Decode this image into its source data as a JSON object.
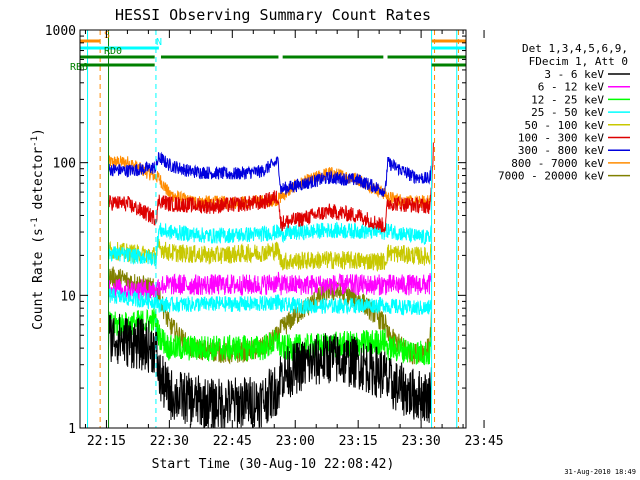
{
  "chart_data": {
    "type": "line",
    "title": "HESSI Observing Summary Count Rates",
    "xlabel": "Start Time (30-Aug-10 22:08:42)",
    "ylabel_main": "Count Rate (s",
    "ylabel_sup1": "-1",
    "ylabel_mid": " detector",
    "ylabel_sup2": "-1",
    "ylabel_end": ")",
    "yscale": "log",
    "ylim": [
      1,
      1000
    ],
    "xlim_min": [
      8.7,
      100.7
    ],
    "xticks_min": [
      15,
      30,
      45,
      60,
      75,
      90,
      105
    ],
    "xtick_labels": [
      "22:15",
      "22:30",
      "22:45",
      "23:00",
      "23:15",
      "23:30",
      "23:45"
    ],
    "ytick_labels": [
      {
        "v": 1,
        "label": "1"
      },
      {
        "v": 10,
        "label": "10"
      },
      {
        "v": 100,
        "label": "100"
      },
      {
        "v": 1000,
        "label": "1000"
      }
    ],
    "legend_header": [
      "Det 1,3,4,5,6,9,",
      "FDecim 1, Att 0"
    ],
    "legend": [
      {
        "label": "3 - 6 keV",
        "color": "#000000"
      },
      {
        "label": "6 - 12 keV",
        "color": "#ff00ff"
      },
      {
        "label": "12 - 25 keV",
        "color": "#00ff00"
      },
      {
        "label": "25 - 50 keV",
        "color": "#00ffff"
      },
      {
        "label": "50 - 100 keV",
        "color": "#c8c800"
      },
      {
        "label": "100 - 300 keV",
        "color": "#dd0000"
      },
      {
        "label": "300 - 800 keV",
        "color": "#0000dd"
      },
      {
        "label": "800 - 7000 keV",
        "color": "#ff8c00"
      },
      {
        "label": "7000 - 20000 keV",
        "color": "#808000"
      }
    ],
    "flags": [
      {
        "label": "S",
        "color": "#ff8c00",
        "segments": [
          [
            8.7,
            13.5
          ],
          [
            92.5,
            100.7
          ]
        ]
      },
      {
        "label": "N",
        "color": "#00ffff",
        "segments": [
          [
            8.7,
            27.5
          ],
          [
            92.5,
            100.7
          ]
        ]
      },
      {
        "label": "RD0",
        "color": "#008000",
        "segments": [
          [
            8.7,
            26.5
          ],
          [
            28,
            56
          ],
          [
            57,
            81
          ],
          [
            82,
            100.7
          ]
        ]
      },
      {
        "label": "RB6",
        "color": "#008000",
        "segments": [
          [
            8.7,
            26.5
          ],
          [
            92.5,
            100.7
          ]
        ]
      }
    ],
    "vlines": [
      {
        "x": 10.5,
        "color": "#00ffff",
        "dash": false
      },
      {
        "x": 13.5,
        "color": "#ff8c00",
        "dash": true
      },
      {
        "x": 15.5,
        "color": "#008000",
        "dash": false
      },
      {
        "x": 26.8,
        "color": "#00ffff",
        "dash": true
      },
      {
        "x": 92.5,
        "color": "#00ffff",
        "dash": false
      },
      {
        "x": 93.2,
        "color": "#ff8c00",
        "dash": true
      },
      {
        "x": 98.5,
        "color": "#00ffff",
        "dash": false
      },
      {
        "x": 98.9,
        "color": "#ff8c00",
        "dash": true
      }
    ],
    "segments": [
      [
        15.5,
        26.8
      ],
      [
        27.5,
        56
      ],
      [
        56.5,
        81.5
      ],
      [
        82,
        92.5
      ]
    ],
    "series": [
      {
        "color": "#ff8c00",
        "noise": 0.05,
        "points": [
          [
            15.5,
            101
          ],
          [
            20,
            101
          ],
          [
            26.8,
            78
          ],
          [
            27.5,
            77
          ],
          [
            30,
            58
          ],
          [
            35,
            51
          ],
          [
            45,
            50
          ],
          [
            52,
            51
          ],
          [
            56,
            53
          ],
          [
            56.5,
            55
          ],
          [
            60,
            67
          ],
          [
            68,
            84
          ],
          [
            75,
            75
          ],
          [
            81.5,
            58
          ],
          [
            82,
            55
          ],
          [
            88,
            50
          ],
          [
            92,
            51
          ],
          [
            92.5,
            60
          ]
        ]
      },
      {
        "color": "#0000dd",
        "noise": 0.05,
        "points": [
          [
            15.5,
            89
          ],
          [
            20,
            87
          ],
          [
            26.8,
            92
          ],
          [
            27.5,
            110
          ],
          [
            30,
            96
          ],
          [
            35,
            86
          ],
          [
            45,
            82
          ],
          [
            52,
            86
          ],
          [
            56,
            103
          ],
          [
            56.5,
            63
          ],
          [
            60,
            67
          ],
          [
            68,
            77
          ],
          [
            75,
            74
          ],
          [
            81.5,
            61
          ],
          [
            82,
            100
          ],
          [
            88,
            79
          ],
          [
            92,
            75
          ],
          [
            92.5,
            90
          ]
        ]
      },
      {
        "color": "#808000",
        "noise": 0.08,
        "points": [
          [
            15.5,
            14
          ],
          [
            20,
            13
          ],
          [
            26.8,
            11
          ],
          [
            27.5,
            10
          ],
          [
            30,
            6
          ],
          [
            35,
            4
          ],
          [
            45,
            3.6
          ],
          [
            52,
            4
          ],
          [
            56,
            5
          ],
          [
            56.5,
            5.5
          ],
          [
            60,
            7
          ],
          [
            68,
            11
          ],
          [
            75,
            9.5
          ],
          [
            81.5,
            6
          ],
          [
            82,
            5
          ],
          [
            88,
            3.6
          ],
          [
            92,
            4
          ],
          [
            92.5,
            7
          ]
        ]
      },
      {
        "color": "#00ff00",
        "noise": 0.1,
        "points": [
          [
            15.5,
            6
          ],
          [
            20,
            6
          ],
          [
            26.8,
            6.5
          ],
          [
            27.5,
            5
          ],
          [
            30,
            4
          ],
          [
            40,
            4
          ],
          [
            52,
            4
          ],
          [
            56,
            4.5
          ],
          [
            56.5,
            4
          ],
          [
            68,
            4.2
          ],
          [
            81.5,
            4.5
          ],
          [
            82,
            4
          ],
          [
            88,
            3.8
          ],
          [
            92,
            3.6
          ],
          [
            92.5,
            4.5
          ]
        ]
      },
      {
        "color": "#c8c800",
        "noise": 0.07,
        "points": [
          [
            15.5,
            22
          ],
          [
            20,
            21
          ],
          [
            26.8,
            20
          ],
          [
            27.5,
            23
          ],
          [
            30,
            21
          ],
          [
            40,
            20
          ],
          [
            52,
            21
          ],
          [
            56,
            22
          ],
          [
            56.5,
            18
          ],
          [
            68,
            18.5
          ],
          [
            81.5,
            18
          ],
          [
            82,
            21
          ],
          [
            88,
            20
          ],
          [
            92,
            19.5
          ],
          [
            92.5,
            23
          ]
        ]
      },
      {
        "color": "#00ffff",
        "noise": 0.06,
        "points": [
          [
            15.5,
            21
          ],
          [
            20,
            20
          ],
          [
            26.8,
            19
          ],
          [
            27.5,
            31
          ],
          [
            30,
            30
          ],
          [
            40,
            28
          ],
          [
            52,
            29
          ],
          [
            56,
            30
          ],
          [
            56.5,
            29
          ],
          [
            68,
            31
          ],
          [
            81.5,
            30
          ],
          [
            82,
            31
          ],
          [
            88,
            28
          ],
          [
            92,
            27
          ],
          [
            92.5,
            33
          ]
        ]
      },
      {
        "color": "#dd0000",
        "noise": 0.06,
        "points": [
          [
            15.5,
            50
          ],
          [
            20,
            49
          ],
          [
            26.8,
            38
          ],
          [
            27.5,
            52
          ],
          [
            30,
            49
          ],
          [
            40,
            47
          ],
          [
            52,
            50
          ],
          [
            56,
            56
          ],
          [
            56.5,
            35
          ],
          [
            62,
            38
          ],
          [
            68,
            43
          ],
          [
            75,
            40
          ],
          [
            81.5,
            33
          ],
          [
            82,
            50
          ],
          [
            88,
            48
          ],
          [
            92,
            47
          ],
          [
            92.5,
            60
          ],
          [
            93,
            150
          ]
        ]
      },
      {
        "color": "#ff00ff",
        "noise": 0.08,
        "points": [
          [
            15.5,
            11.5
          ],
          [
            20,
            11
          ],
          [
            26.8,
            11
          ],
          [
            27.5,
            12
          ],
          [
            30,
            12
          ],
          [
            40,
            12
          ],
          [
            52,
            12
          ],
          [
            56,
            12.5
          ],
          [
            56.5,
            12
          ],
          [
            68,
            12
          ],
          [
            81.5,
            12
          ],
          [
            82,
            12
          ],
          [
            88,
            12
          ],
          [
            92,
            12
          ],
          [
            92.5,
            13
          ]
        ]
      },
      {
        "color": "#00ffff",
        "noise": 0.06,
        "points": [
          [
            15.5,
            10
          ],
          [
            20,
            9.5
          ],
          [
            26.8,
            9
          ],
          [
            27.5,
            8.5
          ],
          [
            40,
            8.6
          ],
          [
            52,
            8.6
          ],
          [
            56,
            9
          ],
          [
            56.5,
            8.4
          ],
          [
            68,
            8.3
          ],
          [
            81.5,
            8.5
          ],
          [
            82,
            8.3
          ],
          [
            88,
            8
          ],
          [
            92,
            8
          ],
          [
            92.5,
            9
          ]
        ]
      },
      {
        "color": "#000000",
        "noise": 0.2,
        "points": [
          [
            15.5,
            5
          ],
          [
            20,
            4.5
          ],
          [
            26.8,
            4
          ],
          [
            27.5,
            2.5
          ],
          [
            30,
            1.8
          ],
          [
            40,
            1.5
          ],
          [
            52,
            1.6
          ],
          [
            56,
            2
          ],
          [
            56.5,
            2.5
          ],
          [
            62,
            3
          ],
          [
            68,
            3.4
          ],
          [
            75,
            3.1
          ],
          [
            81.5,
            2.5
          ],
          [
            82,
            2.2
          ],
          [
            88,
            1.8
          ],
          [
            92,
            1.7
          ],
          [
            92.5,
            2.5
          ]
        ]
      }
    ]
  },
  "footer": {
    "date_stamp": "31-Aug-2010 18:49"
  }
}
